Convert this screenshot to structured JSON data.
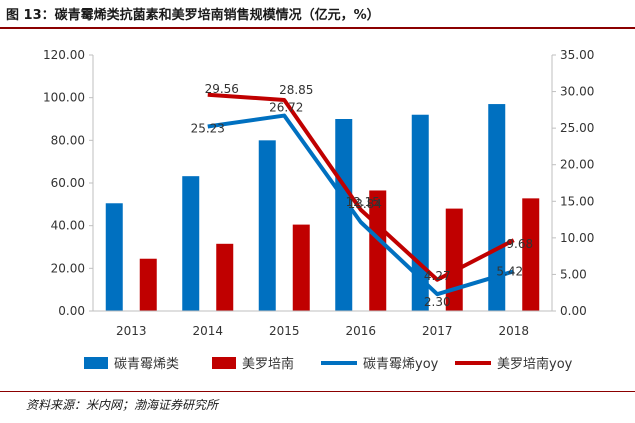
{
  "title": "图 13：碳青霉烯类抗菌素和美罗培南销售规模情况（亿元，%）",
  "source": "资料来源：米内网；渤海证券研究所",
  "chart_data": {
    "type": "bar",
    "categories": [
      "2013",
      "2014",
      "2015",
      "2016",
      "2017",
      "2018"
    ],
    "series": [
      {
        "name": "碳青霉烯类",
        "kind": "bar",
        "axis": "left",
        "color": "#0070c0",
        "values": [
          50.5,
          63.2,
          80.0,
          90.0,
          92.0,
          97.0
        ]
      },
      {
        "name": "美罗培南",
        "kind": "bar",
        "axis": "left",
        "color": "#c00000",
        "values": [
          24.5,
          31.5,
          40.5,
          56.5,
          48.0,
          52.8
        ]
      },
      {
        "name": "碳青霉烯yoy",
        "kind": "line",
        "axis": "right",
        "color": "#0070c0",
        "values": [
          null,
          25.23,
          26.72,
          12.15,
          2.3,
          5.42
        ],
        "labels": [
          "",
          "25.23",
          "26.72",
          "12.15",
          "2.30",
          "5.42"
        ]
      },
      {
        "name": "美罗培南yoy",
        "kind": "line",
        "axis": "right",
        "color": "#c00000",
        "values": [
          null,
          29.56,
          28.85,
          13.84,
          4.27,
          9.68
        ],
        "labels": [
          "",
          "29.56",
          "28.85",
          "13.84",
          "4.27",
          "9.68"
        ]
      }
    ],
    "y_left": {
      "min": 0,
      "max": 120,
      "step": 20,
      "ticks": [
        "0.00",
        "20.00",
        "40.00",
        "60.00",
        "80.00",
        "100.00",
        "120.00"
      ]
    },
    "y_right": {
      "min": 0,
      "max": 35,
      "step": 5,
      "ticks": [
        "0.00",
        "5.00",
        "10.00",
        "15.00",
        "20.00",
        "25.00",
        "30.00",
        "35.00"
      ]
    },
    "legend_position": "bottom",
    "grid": false
  }
}
